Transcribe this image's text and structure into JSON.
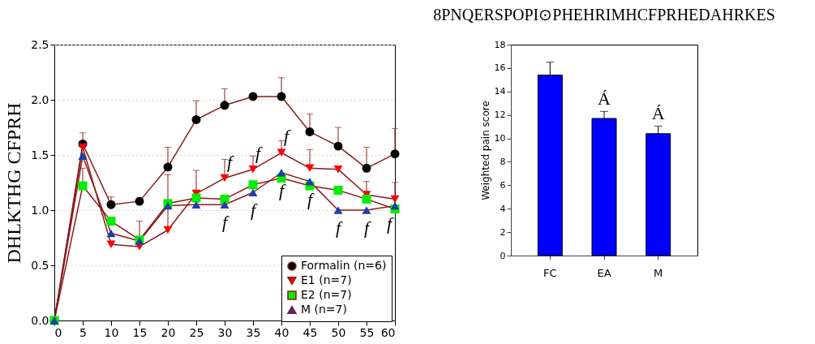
{
  "chart_data": [
    {
      "type": "line",
      "ylabel": "DHLKTHG CFPRH",
      "x": [
        0,
        5,
        10,
        15,
        20,
        25,
        30,
        35,
        40,
        45,
        50,
        55,
        60
      ],
      "xlim": [
        0,
        60
      ],
      "xticks": [
        0,
        5,
        10,
        15,
        20,
        25,
        30,
        35,
        40,
        45,
        50,
        55,
        60
      ],
      "ylim": [
        0,
        2.5
      ],
      "yticks": [
        {
          "value": 0,
          "label": "0.0"
        },
        0.5,
        {
          "value": 1,
          "label": "1.0"
        },
        1.5,
        {
          "value": 2,
          "label": "2.0"
        },
        2.5
      ],
      "grid": "y",
      "legend": "bottom right",
      "series": [
        {
          "name": "Formalin (n=6)",
          "color": "#000000",
          "marker": "circle",
          "values": [
            0,
            1.6,
            1.05,
            1.08,
            1.39,
            1.82,
            1.95,
            2.03,
            2.03,
            1.71,
            1.58,
            1.38,
            1.51
          ],
          "errors": [
            null,
            [
              1.6,
              1.7
            ],
            [
              1.05,
              1.12
            ],
            null,
            [
              1.39,
              1.57
            ],
            [
              1.82,
              1.99
            ],
            [
              1.95,
              2.1
            ],
            null,
            [
              2.03,
              2.2
            ],
            [
              1.71,
              1.87
            ],
            [
              1.58,
              1.75
            ],
            [
              1.38,
              1.57
            ],
            [
              1.51,
              1.74
            ]
          ]
        },
        {
          "name": "E1 (n=7)",
          "color": "#ff0000",
          "marker": "triangle-down",
          "values": [
            0,
            1.57,
            0.69,
            0.67,
            0.82,
            1.15,
            1.29,
            1.37,
            1.52,
            1.38,
            1.37,
            1.14,
            1.1
          ],
          "errors": [
            null,
            null,
            null,
            [
              0.67,
              0.9
            ],
            [
              0.82,
              1.32
            ],
            [
              1.15,
              1.36
            ],
            [
              1.29,
              1.46
            ],
            [
              1.37,
              1.49
            ],
            [
              1.52,
              1.63
            ],
            [
              1.38,
              1.55
            ],
            null,
            [
              1.14,
              1.26
            ],
            [
              1.1,
              1.25
            ]
          ]
        },
        {
          "name": "E2 (n=7)",
          "color": "#00ee00",
          "marker": "square",
          "values": [
            0,
            1.22,
            0.9,
            0.73,
            1.06,
            1.11,
            1.1,
            1.23,
            1.29,
            1.22,
            1.18,
            1.1,
            1.01
          ],
          "errors": [
            null,
            [
              1.22,
              1.38
            ],
            null,
            null,
            null,
            null,
            null,
            null,
            null,
            null,
            null,
            null,
            null
          ]
        },
        {
          "name": "M (n=7)",
          "color": "#1c3fa8",
          "marker": "triangle-up",
          "values": [
            0,
            1.49,
            0.79,
            0.72,
            1.04,
            1.05,
            1.05,
            1.16,
            1.34,
            1.26,
            1.0,
            1.0,
            1.04
          ]
        }
      ],
      "annotations": [
        {
          "text": "f",
          "x": 30,
          "y": 1.29
        },
        {
          "text": "f",
          "x": 35,
          "y": 1.37
        },
        {
          "text": "f",
          "x": 40,
          "y": 1.52
        },
        {
          "text": "f",
          "x": 30,
          "y": 1.05
        },
        {
          "text": "f",
          "x": 35,
          "y": 1.16
        },
        {
          "text": "f",
          "x": 40,
          "y": 1.34
        },
        {
          "text": "f",
          "x": 45,
          "y": 1.26
        },
        {
          "text": "f",
          "x": 50,
          "y": 1.0
        },
        {
          "text": "f",
          "x": 55,
          "y": 1.0
        },
        {
          "text": "f",
          "x": 60,
          "y": 1.04
        }
      ]
    },
    {
      "type": "bar",
      "title": "8PNQERSPOPI⊙PHEHRIMHCFPRHEDAHRKES",
      "ylabel": "Weighted pain score",
      "categories": [
        "FC",
        "EA",
        "M"
      ],
      "values": [
        15.4,
        11.7,
        10.4
      ],
      "errors": [
        [
          15.4,
          16.5
        ],
        [
          11.7,
          12.3
        ],
        [
          10.4,
          11.05
        ]
      ],
      "color": "#0000ff",
      "ylim": [
        0,
        18
      ],
      "yticks": [
        0,
        2,
        4,
        6,
        8,
        10,
        12,
        14,
        16,
        18
      ],
      "annotations": [
        {
          "text": "Á",
          "x": "EA",
          "y": 12.3
        },
        {
          "text": "Á",
          "x": "M",
          "y": 11.05
        }
      ]
    }
  ]
}
